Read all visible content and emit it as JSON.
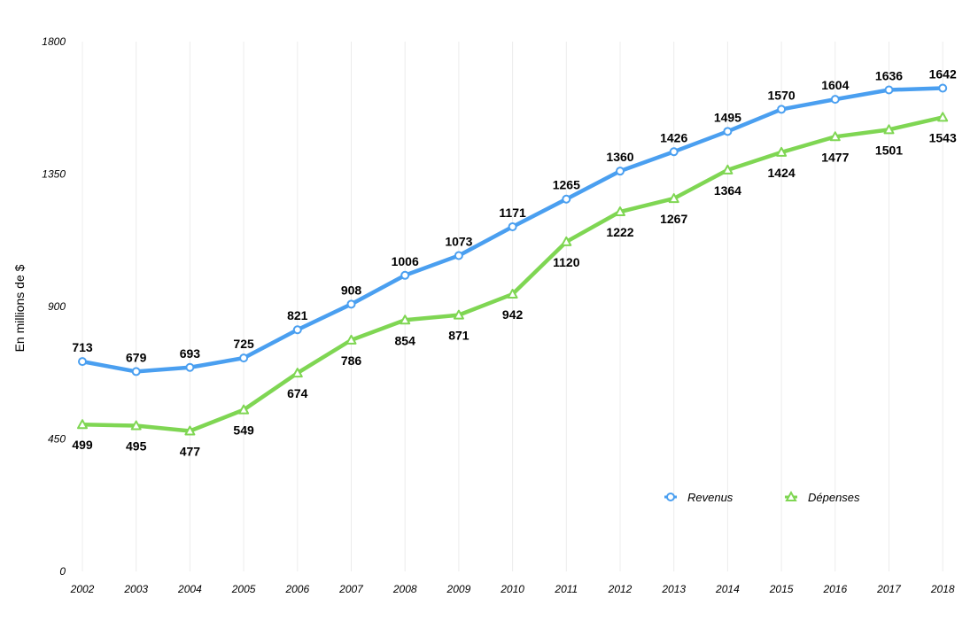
{
  "chart_data": {
    "type": "line",
    "title": "",
    "xlabel": "",
    "ylabel": "En millions de $",
    "categories": [
      "2002",
      "2003",
      "2004",
      "2005",
      "2006",
      "2007",
      "2008",
      "2009",
      "2010",
      "2011",
      "2012",
      "2013",
      "2014",
      "2015",
      "2016",
      "2017",
      "2018"
    ],
    "ylim": [
      0,
      1800
    ],
    "yticks": [
      "0",
      "450",
      "900",
      "1350",
      "1800"
    ],
    "grid": "vertical",
    "legend_position": "bottom-right",
    "series": [
      {
        "name": "Revenus",
        "color": "#4a9ff0",
        "marker": "circle",
        "values": [
          713,
          679,
          693,
          725,
          821,
          908,
          1006,
          1073,
          1171,
          1265,
          1360,
          1426,
          1495,
          1570,
          1604,
          1636,
          1642
        ]
      },
      {
        "name": "Dépenses",
        "color": "#7fd653",
        "marker": "triangle",
        "values": [
          499,
          495,
          477,
          549,
          674,
          786,
          854,
          871,
          942,
          1120,
          1222,
          1267,
          1364,
          1424,
          1477,
          1501,
          1543
        ]
      }
    ]
  }
}
